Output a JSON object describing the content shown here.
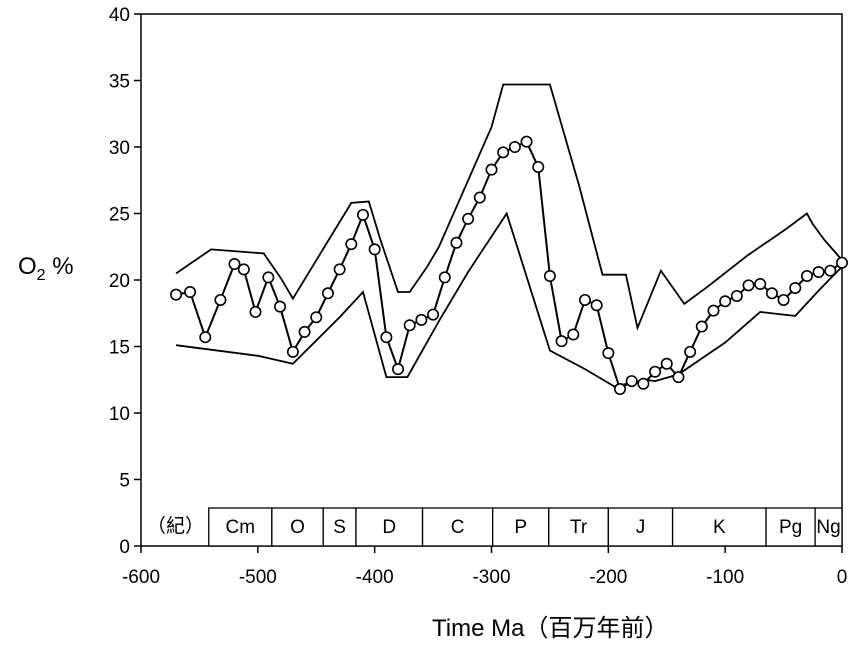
{
  "chart_data": {
    "type": "line",
    "xlabel": "Time Ma（百万年前）",
    "ylabel": "O",
    "ylabel_sub": "2",
    "ylabel_unit": " %",
    "xlim": [
      -600,
      0
    ],
    "ylim": [
      0,
      40
    ],
    "xticks": [
      -600,
      -500,
      -400,
      -300,
      -200,
      -100,
      0
    ],
    "yticks": [
      0,
      5,
      10,
      15,
      20,
      25,
      30,
      35,
      40
    ],
    "grid": false,
    "series": [
      {
        "role": "estimate",
        "markers": "open-circle",
        "x": [
          -570,
          -558,
          -545,
          -532,
          -520,
          -512,
          -502,
          -491,
          -481,
          -470,
          -460,
          -450,
          -440,
          -430,
          -420,
          -410,
          -400,
          -390,
          -380,
          -370,
          -360,
          -350,
          -340,
          -330,
          -320,
          -310,
          -300,
          -290,
          -280,
          -270,
          -260,
          -250,
          -240,
          -230,
          -220,
          -210,
          -200,
          -190,
          -180,
          -170,
          -160,
          -150,
          -140,
          -130,
          -120,
          -110,
          -100,
          -90,
          -80,
          -70,
          -60,
          -50,
          -40,
          -30,
          -20,
          -10,
          0
        ],
        "y": [
          18.9,
          19.1,
          15.7,
          18.5,
          21.2,
          20.8,
          17.6,
          20.2,
          18.0,
          14.6,
          16.1,
          17.2,
          19.0,
          20.8,
          22.7,
          24.9,
          22.3,
          15.7,
          13.3,
          16.6,
          17.0,
          17.4,
          20.2,
          22.8,
          24.6,
          26.2,
          28.3,
          29.6,
          30.0,
          30.4,
          28.5,
          20.3,
          15.4,
          15.9,
          18.5,
          18.1,
          14.5,
          11.8,
          12.4,
          12.2,
          13.1,
          13.7,
          12.7,
          14.6,
          16.5,
          17.7,
          18.4,
          18.8,
          19.6,
          19.7,
          19.0,
          18.5,
          19.4,
          20.3,
          20.6,
          20.7,
          21.3
        ]
      },
      {
        "role": "upper-bound",
        "x": [
          -570,
          -540,
          -495,
          -480,
          -470,
          -420,
          -405,
          -395,
          -380,
          -370,
          -355,
          -345,
          -325,
          -300,
          -290,
          -250,
          -225,
          -205,
          -185,
          -175,
          -155,
          -135,
          -115,
          -80,
          -50,
          -30,
          -25,
          -15,
          -5,
          0
        ],
        "y": [
          20.5,
          22.3,
          22.0,
          20.1,
          18.6,
          25.8,
          25.9,
          23.0,
          19.1,
          19.1,
          21.0,
          22.5,
          26.5,
          31.5,
          34.7,
          34.7,
          27.1,
          20.4,
          20.4,
          16.4,
          20.7,
          18.2,
          19.5,
          21.9,
          23.7,
          25.0,
          24.2,
          23.0,
          22.0,
          21.5
        ]
      },
      {
        "role": "lower-bound",
        "x": [
          -570,
          -500,
          -470,
          -430,
          -410,
          -390,
          -372,
          -345,
          -320,
          -287,
          -250,
          -220,
          -195,
          -168,
          -160,
          -140,
          -100,
          -70,
          -50,
          -40,
          -20,
          0
        ],
        "y": [
          15.1,
          14.3,
          13.7,
          17.2,
          19.1,
          12.7,
          12.7,
          16.9,
          20.6,
          25.0,
          14.7,
          13.3,
          12.0,
          12.5,
          12.4,
          12.9,
          15.3,
          17.6,
          17.4,
          17.3,
          19.2,
          21.0
        ]
      }
    ],
    "periods_prefix": "（紀）",
    "periods": [
      {
        "label": "Cm",
        "start": -542,
        "end": -488
      },
      {
        "label": "O",
        "start": -488,
        "end": -444
      },
      {
        "label": "S",
        "start": -444,
        "end": -416
      },
      {
        "label": "D",
        "start": -416,
        "end": -359
      },
      {
        "label": "C",
        "start": -359,
        "end": -299
      },
      {
        "label": "P",
        "start": -299,
        "end": -251
      },
      {
        "label": "Tr",
        "start": -251,
        "end": -200
      },
      {
        "label": "J",
        "start": -200,
        "end": -145
      },
      {
        "label": "K",
        "start": -145,
        "end": -65
      },
      {
        "label": "Pg",
        "start": -65,
        "end": -23
      },
      {
        "label": "Ng",
        "start": -23,
        "end": 0
      }
    ],
    "colors": {
      "line": "#000000",
      "marker_fill": "#ffffff",
      "background": "#ffffff"
    }
  }
}
